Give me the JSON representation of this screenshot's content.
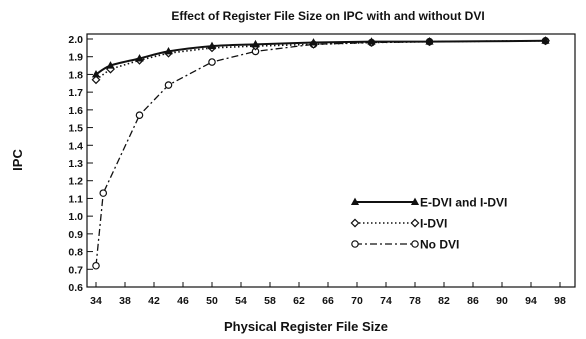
{
  "chart_data": {
    "type": "line",
    "title": "Effect of Register File Size on IPC with and without DVI",
    "xlabel": "Physical Register File Size",
    "ylabel": "IPC",
    "xlim": [
      34,
      98
    ],
    "ylim": [
      0.6,
      2.0
    ],
    "xticks": [
      "34",
      "38",
      "42",
      "46",
      "50",
      "54",
      "58",
      "62",
      "66",
      "70",
      "74",
      "78",
      "82",
      "86",
      "90",
      "94",
      "98"
    ],
    "yticks": [
      "0.6",
      "0.7",
      "0.8",
      "0.9",
      "1.0",
      "1.1",
      "1.2",
      "1.3",
      "1.4",
      "1.5",
      "1.6",
      "1.7",
      "1.8",
      "1.9",
      "2.0"
    ],
    "grid": false,
    "legend_position": "right",
    "series": [
      {
        "name": "E-DVI and I-DVI",
        "line": "solid",
        "marker": "triangle",
        "x": [
          34,
          36,
          40,
          44,
          50,
          56,
          64,
          72,
          80,
          96
        ],
        "y": [
          1.8,
          1.85,
          1.89,
          1.93,
          1.96,
          1.97,
          1.98,
          1.985,
          1.985,
          1.99
        ]
      },
      {
        "name": "I-DVI",
        "line": "dotted",
        "marker": "diamond",
        "x": [
          34,
          36,
          40,
          44,
          50,
          56,
          64,
          72,
          80,
          96
        ],
        "y": [
          1.77,
          1.83,
          1.88,
          1.92,
          1.95,
          1.96,
          1.97,
          1.98,
          1.985,
          1.99
        ]
      },
      {
        "name": "No DVI",
        "line": "dashdot",
        "marker": "circle",
        "x": [
          34,
          35,
          40,
          44,
          50,
          56,
          64,
          72,
          80,
          96
        ],
        "y": [
          0.72,
          1.13,
          1.57,
          1.74,
          1.87,
          1.93,
          1.97,
          1.98,
          1.985,
          1.99
        ]
      }
    ]
  }
}
